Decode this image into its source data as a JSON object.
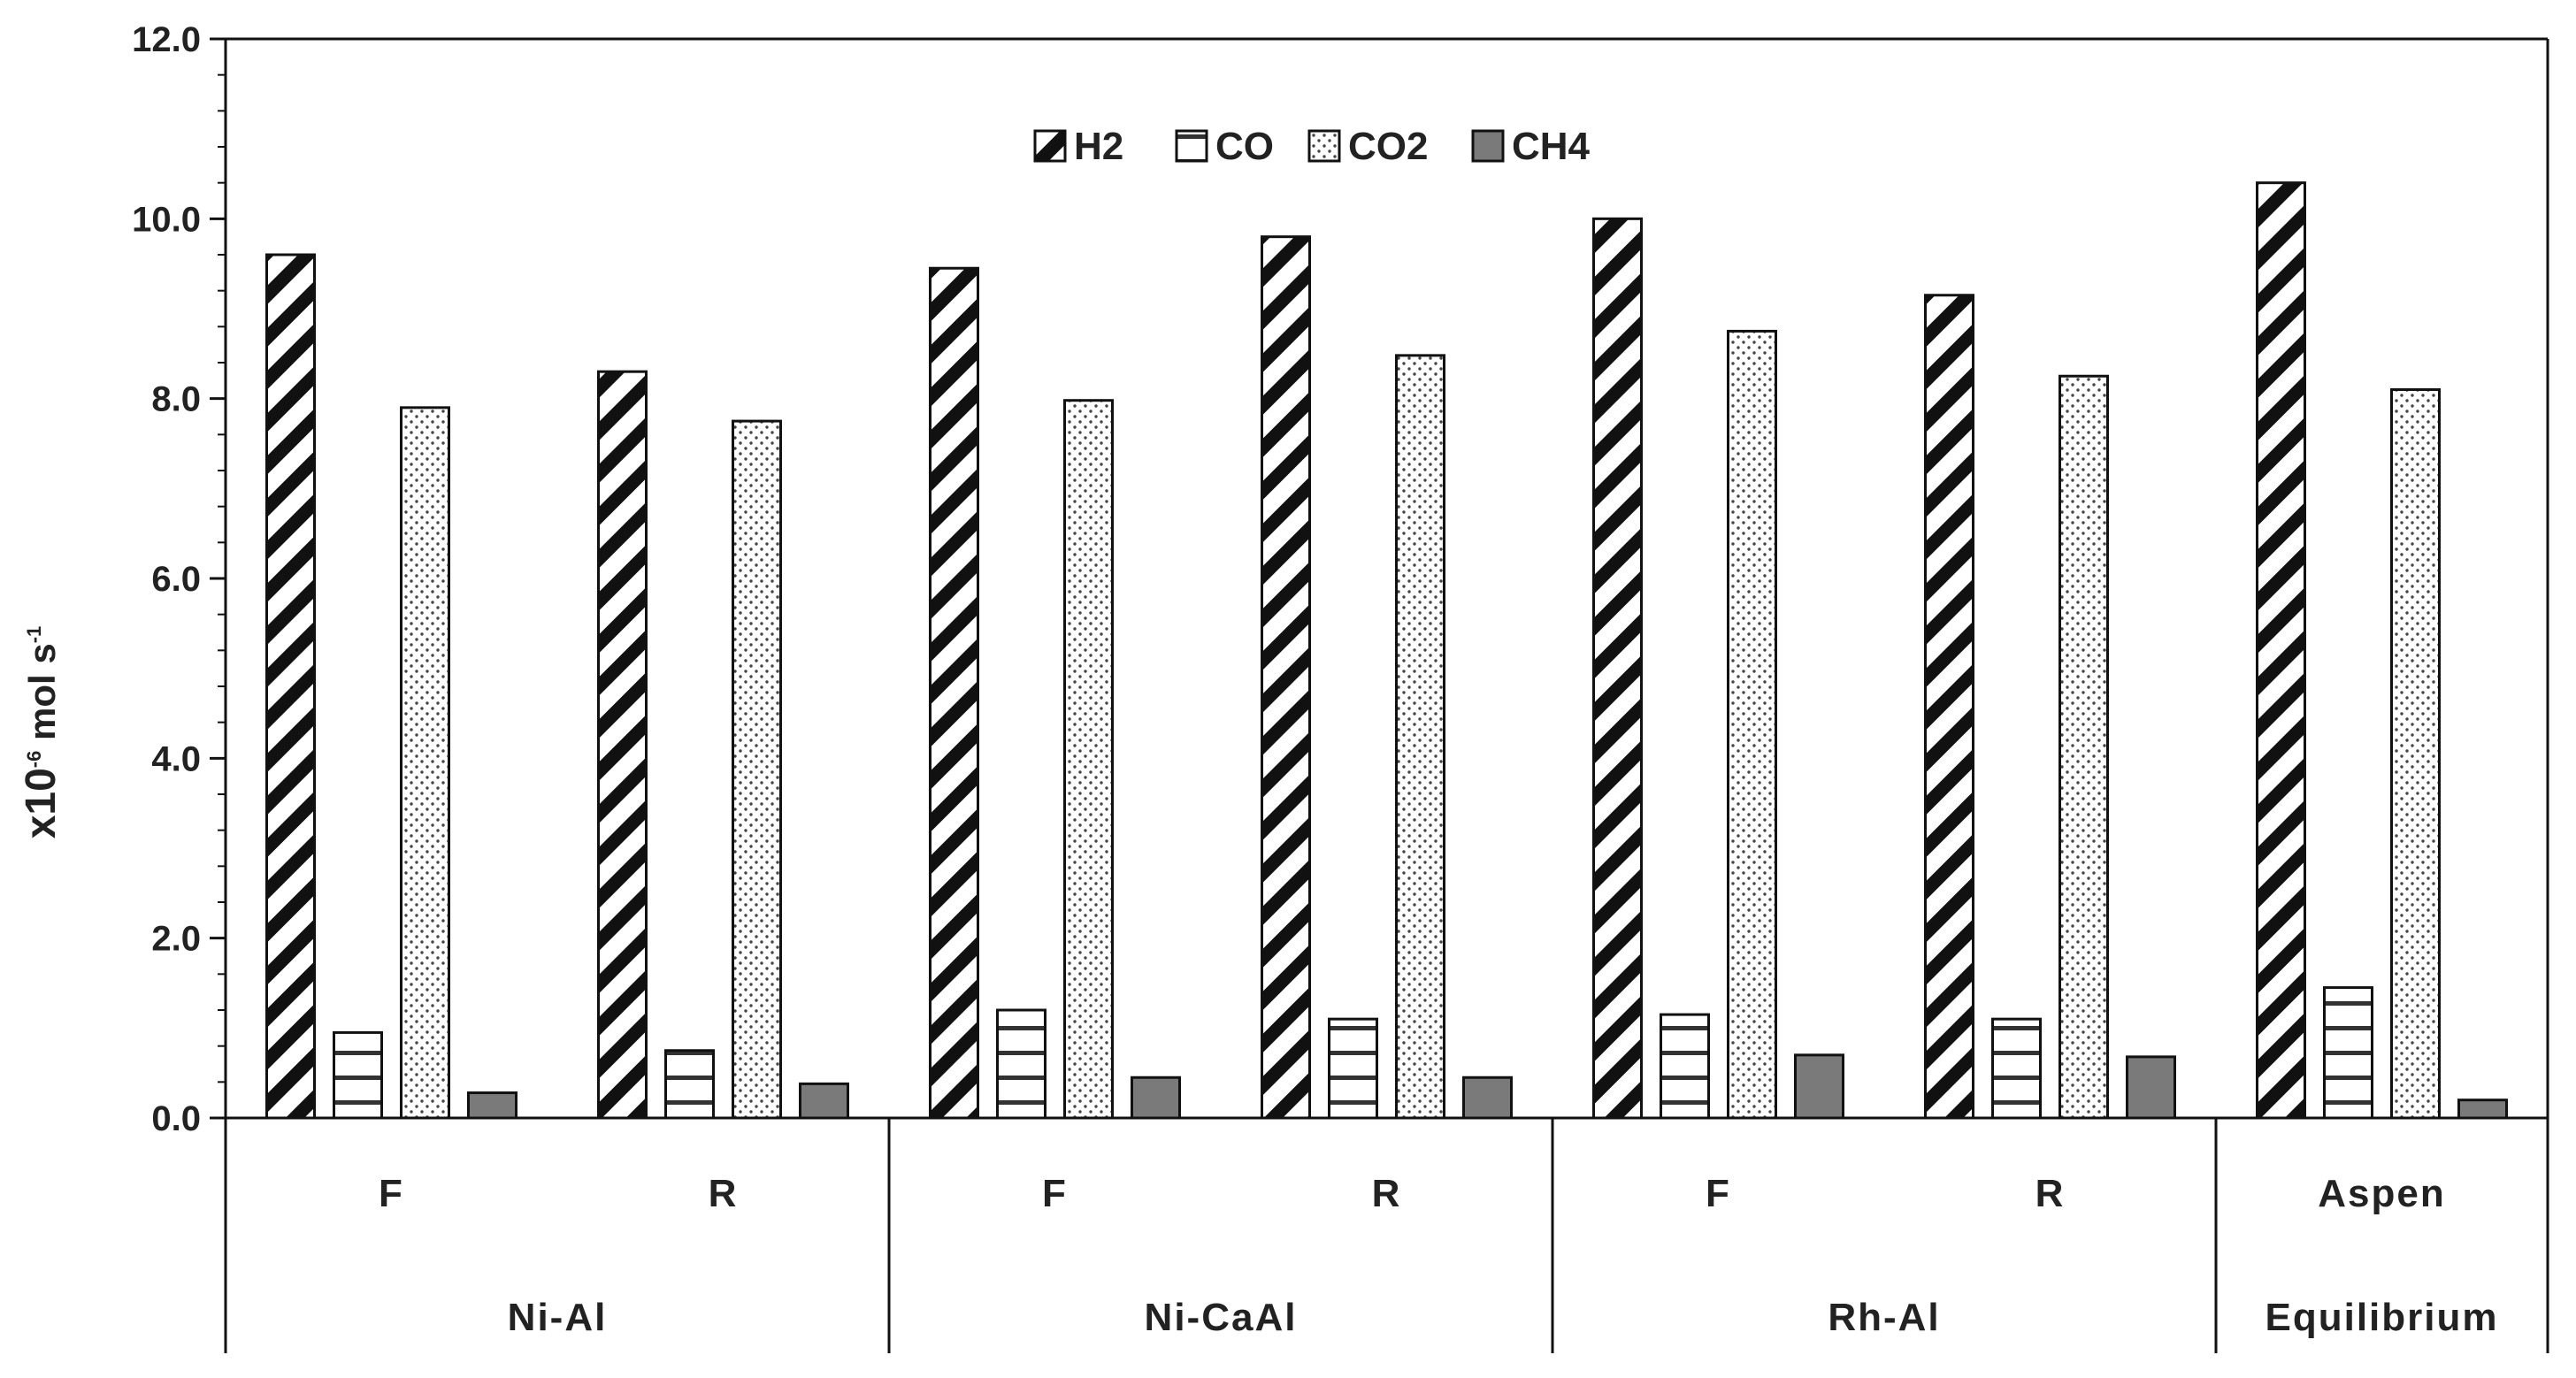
{
  "chart_data": {
    "type": "bar",
    "title": "",
    "xlabel": "",
    "ylabel": "x10⁻⁶ mol s⁻¹",
    "ylabel_parts": {
      "prefix": "x10",
      "exp1": "-6",
      "middle": " mol s",
      "exp2": "-1"
    },
    "ylim": [
      0,
      12
    ],
    "yticks": [
      "0.0",
      "2.0",
      "4.0",
      "6.0",
      "8.0",
      "10.0",
      "12.0"
    ],
    "categories": [
      "F",
      "R",
      "F",
      "R",
      "F",
      "R",
      "Aspen"
    ],
    "groups": [
      {
        "label": "Ni-Al",
        "span": 2
      },
      {
        "label": "Ni-CaAl",
        "span": 2
      },
      {
        "label": "Rh-Al",
        "span": 2
      },
      {
        "label": "Equilibrium",
        "span": 1
      }
    ],
    "legend_position": "top-center",
    "series": [
      {
        "name": "H2",
        "pattern": "diagonal",
        "values": [
          9.6,
          8.3,
          9.45,
          9.8,
          10.0,
          9.15,
          10.4
        ]
      },
      {
        "name": "CO",
        "pattern": "horizontal",
        "values": [
          0.95,
          0.75,
          1.2,
          1.1,
          1.15,
          1.1,
          1.45
        ]
      },
      {
        "name": "CO2",
        "pattern": "dots",
        "values": [
          7.9,
          7.75,
          7.98,
          8.48,
          8.75,
          8.25,
          8.1
        ]
      },
      {
        "name": "CH4",
        "pattern": "solid",
        "color": "#7a7a7a",
        "values": [
          0.28,
          0.38,
          0.45,
          0.45,
          0.7,
          0.68,
          0.2
        ]
      }
    ]
  }
}
